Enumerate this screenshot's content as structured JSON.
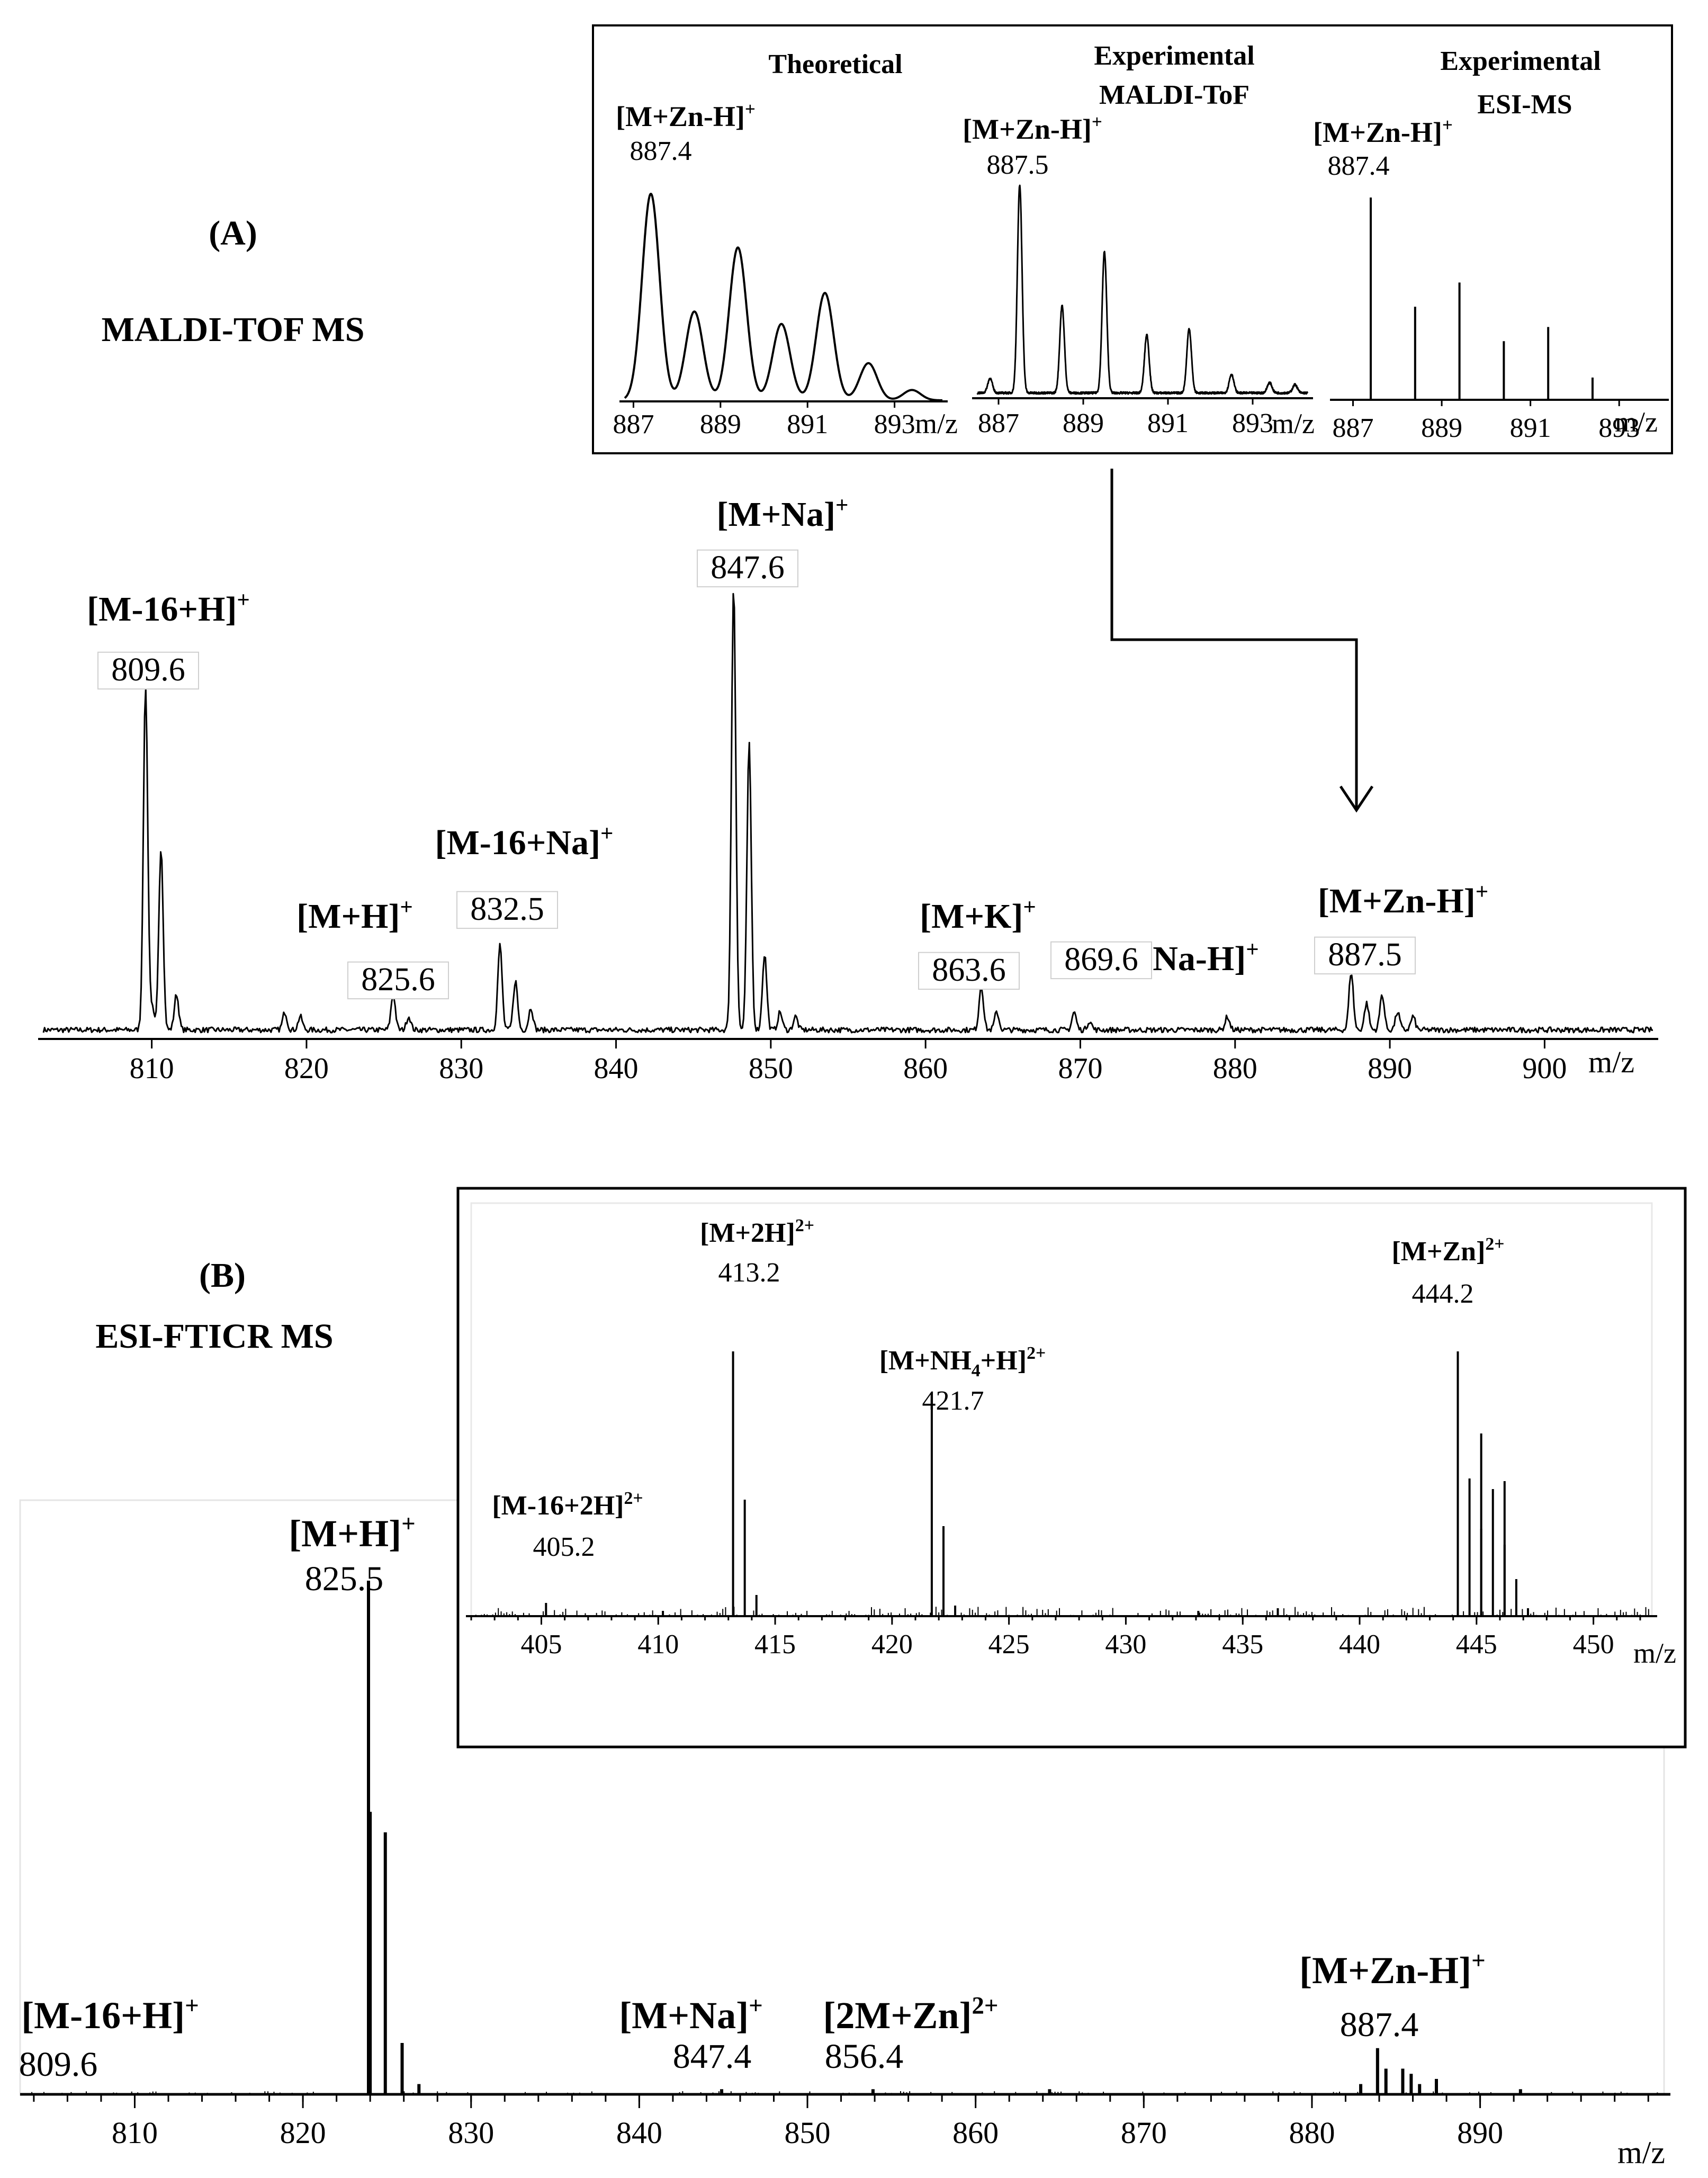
{
  "panels": {
    "a": {
      "letter": "(A)",
      "method": "MALDI-TOF MS"
    },
    "b": {
      "letter": "(B)",
      "method": "ESI-FTICR MS"
    }
  },
  "chart_data": [
    {
      "id": "maldi",
      "type": "line",
      "xlabel": "m/z",
      "xlim": [
        803,
        907
      ],
      "ticks": [
        810,
        820,
        830,
        840,
        850,
        860,
        870,
        880,
        890,
        900
      ],
      "tick_labels": [
        "810",
        "820",
        "830",
        "840",
        "850",
        "860",
        "870",
        "880",
        "890",
        "900"
      ],
      "peaks": [
        [
          809.6,
          0.77
        ],
        [
          810.0,
          0.05
        ],
        [
          810.6,
          0.41
        ],
        [
          811.6,
          0.08
        ],
        [
          818.6,
          0.04
        ],
        [
          819.6,
          0.03
        ],
        [
          825.6,
          0.08
        ],
        [
          826.6,
          0.03
        ],
        [
          832.5,
          0.19
        ],
        [
          833.5,
          0.11
        ],
        [
          834.5,
          0.05
        ],
        [
          847.6,
          1.0
        ],
        [
          848.6,
          0.64
        ],
        [
          849.6,
          0.17
        ],
        [
          850.6,
          0.04
        ],
        [
          851.6,
          0.03
        ],
        [
          863.6,
          0.1
        ],
        [
          864.6,
          0.04
        ],
        [
          869.6,
          0.04
        ],
        [
          870.6,
          0.02
        ],
        [
          879.5,
          0.03
        ],
        [
          887.5,
          0.13
        ],
        [
          888.5,
          0.06
        ],
        [
          889.5,
          0.08
        ],
        [
          890.5,
          0.04
        ],
        [
          891.5,
          0.03
        ]
      ],
      "annotations": [
        {
          "ion": "[M-16+H]",
          "charge": "+",
          "mz": "809.6"
        },
        {
          "ion": "[M+H]",
          "charge": "+",
          "mz": "825.6"
        },
        {
          "ion": "[M-16+Na]",
          "charge": "+",
          "mz": "832.5"
        },
        {
          "ion": "[M+Na]",
          "charge": "+",
          "mz": "847.6"
        },
        {
          "ion": "[M+K]",
          "charge": "+",
          "mz": "863.6"
        },
        {
          "ion": "[M+2Na-H]",
          "charge": "+",
          "mz": "869.6"
        },
        {
          "ion": "[M+Zn-H]",
          "charge": "+",
          "mz": "887.5"
        }
      ]
    },
    {
      "id": "inset_theoretical",
      "type": "line",
      "title": "Theoretical",
      "xlabel": "m/z",
      "xlim": [
        886.8,
        894.1
      ],
      "ticks": [
        887,
        889,
        891,
        893
      ],
      "tick_labels": [
        "887",
        "889",
        "891",
        "893"
      ],
      "peaks": [
        [
          887.4,
          1.0
        ],
        [
          888.4,
          0.43
        ],
        [
          889.4,
          0.74
        ],
        [
          890.4,
          0.37
        ],
        [
          891.4,
          0.52
        ],
        [
          892.4,
          0.18
        ],
        [
          893.4,
          0.05
        ]
      ],
      "annotation": {
        "ion": "[M+Zn-H]",
        "charge": "+",
        "mz": "887.4"
      }
    },
    {
      "id": "inset_maldi",
      "type": "line",
      "title": "Experimental MALDI-ToF",
      "xlabel": "m/z",
      "xlim": [
        886.5,
        894.3
      ],
      "ticks": [
        887,
        889,
        891,
        893
      ],
      "tick_labels": [
        "887",
        "889",
        "891",
        "893"
      ],
      "peaks": [
        [
          886.8,
          0.07
        ],
        [
          887.5,
          1.0
        ],
        [
          888.5,
          0.42
        ],
        [
          889.5,
          0.68
        ],
        [
          890.5,
          0.28
        ],
        [
          891.5,
          0.31
        ],
        [
          892.5,
          0.09
        ],
        [
          893.4,
          0.05
        ],
        [
          894.0,
          0.04
        ]
      ],
      "annotation": {
        "ion": "[M+Zn-H]",
        "charge": "+",
        "mz": "887.5"
      }
    },
    {
      "id": "inset_esi",
      "type": "bar",
      "title": "Experimental ESI-MS",
      "xlabel": "m/z",
      "xlim": [
        886.6,
        894.0
      ],
      "ticks": [
        887,
        889,
        891,
        893
      ],
      "tick_labels": [
        "887",
        "889",
        "891",
        "893"
      ],
      "peaks": [
        [
          887.4,
          1.0
        ],
        [
          888.4,
          0.46
        ],
        [
          889.4,
          0.58
        ],
        [
          890.4,
          0.29
        ],
        [
          891.4,
          0.36
        ],
        [
          892.4,
          0.11
        ]
      ],
      "annotation": {
        "ion": "[M+Zn-H]",
        "charge": "+",
        "mz": "887.4"
      }
    },
    {
      "id": "esi",
      "type": "bar",
      "xlabel": "m/z",
      "xlim": [
        803.5,
        901
      ],
      "ticks": [
        810,
        820,
        830,
        840,
        850,
        860,
        870,
        880,
        890
      ],
      "tick_labels": [
        "810",
        "820",
        "830",
        "840",
        "850",
        "860",
        "870",
        "880",
        "890"
      ],
      "peaks": [
        [
          823.9,
          1.0
        ],
        [
          824.0,
          0.55
        ],
        [
          824.9,
          0.51
        ],
        [
          825.9,
          0.1
        ],
        [
          826.9,
          0.02
        ],
        [
          844.9,
          0.01
        ],
        [
          853.9,
          0.01
        ],
        [
          864.4,
          0.01
        ],
        [
          882.9,
          0.02
        ],
        [
          883.9,
          0.09
        ],
        [
          884.4,
          0.05
        ],
        [
          885.4,
          0.05
        ],
        [
          885.9,
          0.04
        ],
        [
          886.4,
          0.02
        ],
        [
          887.4,
          0.03
        ],
        [
          892.4,
          0.01
        ]
      ],
      "annotations": [
        {
          "ion": "[M-16+H]",
          "charge": "+",
          "mz": "809.6"
        },
        {
          "ion": "[M+H]",
          "charge": "+",
          "mz": "825.5"
        },
        {
          "ion": "[M+Na]",
          "charge": "+",
          "mz": "847.4"
        },
        {
          "ion": "[2M+Zn]",
          "charge": "2+",
          "mz": "856.4"
        },
        {
          "ion": "[M+Zn-H]",
          "charge": "+",
          "mz": "887.4"
        }
      ]
    },
    {
      "id": "esi_inset",
      "type": "bar",
      "xlabel": "m/z",
      "xlim": [
        402,
        452.5
      ],
      "ticks": [
        405,
        410,
        415,
        420,
        425,
        430,
        435,
        440,
        445,
        450
      ],
      "tick_labels": [
        "405",
        "410",
        "415",
        "420",
        "425",
        "430",
        "435",
        "440",
        "445",
        "450"
      ],
      "peaks": [
        [
          405.2,
          0.05
        ],
        [
          410.2,
          0.02
        ],
        [
          413.2,
          1.0
        ],
        [
          413.7,
          0.44
        ],
        [
          414.2,
          0.08
        ],
        [
          421.7,
          0.82
        ],
        [
          422.2,
          0.34
        ],
        [
          422.7,
          0.04
        ],
        [
          433.1,
          0.02
        ],
        [
          436.5,
          0.03
        ],
        [
          444.2,
          1.0
        ],
        [
          444.7,
          0.52
        ],
        [
          445.2,
          0.33
        ],
        [
          445.2,
          0.69
        ],
        [
          445.7,
          0.48
        ],
        [
          446.2,
          0.27
        ],
        [
          446.2,
          0.51
        ],
        [
          446.7,
          0.14
        ],
        [
          447.2,
          0.03
        ]
      ],
      "annotations": [
        {
          "ion": "[M-16+2H]",
          "charge": "2+",
          "mz": "405.2"
        },
        {
          "ion": "[M+2H]",
          "charge": "2+",
          "mz": "413.2"
        },
        {
          "ion": "[M+NH",
          "sub": "4",
          "ion_end": "+H]",
          "charge": "2+",
          "mz": "421.7"
        },
        {
          "ion": "[M+Zn]",
          "charge": "2+",
          "mz": "444.2"
        }
      ]
    }
  ]
}
